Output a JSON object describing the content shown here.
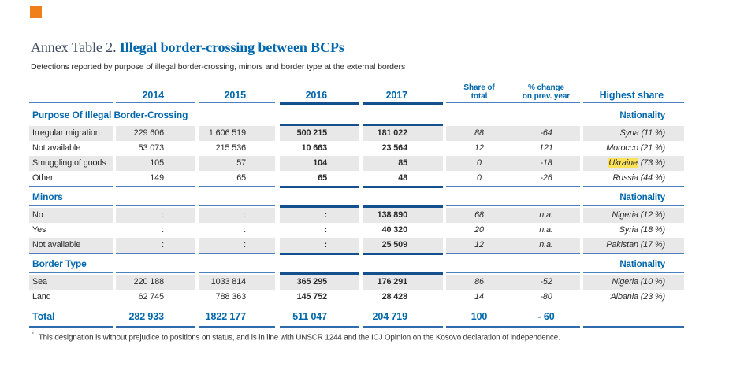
{
  "page": {
    "title_prefix": "Annex Table 2.",
    "title_main": "Illegal border-crossing between BCPs",
    "subtitle": "Detections reported by purpose of illegal border-crossing, minors and border type at the external borders",
    "footnote_marker": "°",
    "footnote_text": "This designation is without prejudice to positions on status, and is in line with UNSCR 1244 and the ICJ Opinion on the Kosovo declaration of independence."
  },
  "colors": {
    "accent_blue": "#0067ac",
    "rule_blue": "#4a80c0",
    "boxed_rule_dark_blue": "#15508e",
    "row_gray": "#e8e8e9",
    "highlight_yellow": "#fce258",
    "orange_marker": "#f07f1a",
    "title_prefix_color": "#3d4c61"
  },
  "table": {
    "col_headers": {
      "y2014": "2014",
      "y2015": "2015",
      "y2016": "2016",
      "y2017": "2017",
      "share_l1": "Share of",
      "share_l2": "total",
      "change_l1": "% change",
      "change_l2": "on prev. year",
      "highest": "Highest share"
    },
    "nationality_label": "Nationality",
    "sections": [
      {
        "title": "Purpose Of Illegal Border-Crossing",
        "rows": [
          {
            "label": "Irregular migration",
            "y2014": "229 606",
            "y2015": "1 606 519",
            "y2016": "500 215",
            "y2017": "181 022",
            "share": "88",
            "change": "-64",
            "high_nat": "Syria",
            "high_pct": " (11 %)",
            "highlight": false
          },
          {
            "label": "Not available",
            "y2014": "53 073",
            "y2015": "215 536",
            "y2016": "10 663",
            "y2017": "23 564",
            "share": "12",
            "change": "121",
            "high_nat": "Morocco",
            "high_pct": " (21 %)",
            "highlight": false
          },
          {
            "label": "Smuggling of goods",
            "y2014": "105",
            "y2015": "57",
            "y2016": "104",
            "y2017": "85",
            "share": "0",
            "change": "-18",
            "high_nat": "Ukraine",
            "high_pct": " (73 %)",
            "highlight": true
          },
          {
            "label": "Other",
            "y2014": "149",
            "y2015": "65",
            "y2016": "65",
            "y2017": "48",
            "share": "0",
            "change": "-26",
            "high_nat": "Russia",
            "high_pct": " (44 %)",
            "highlight": false
          }
        ]
      },
      {
        "title": "Minors",
        "rows": [
          {
            "label": "No",
            "y2014": ":",
            "y2015": ":",
            "y2016": ":",
            "y2017": "138 890",
            "share": "68",
            "change": "n.a.",
            "high_nat": "Nigeria",
            "high_pct": " (12 %)",
            "highlight": false
          },
          {
            "label": "Yes",
            "y2014": ":",
            "y2015": ":",
            "y2016": ":",
            "y2017": "40 320",
            "share": "20",
            "change": "n.a.",
            "high_nat": "Syria",
            "high_pct": " (18 %)",
            "highlight": false
          },
          {
            "label": "Not available",
            "y2014": ":",
            "y2015": ":",
            "y2016": ":",
            "y2017": "25 509",
            "share": "12",
            "change": "n.a.",
            "high_nat": "Pakistan",
            "high_pct": " (17 %)",
            "highlight": false
          }
        ]
      },
      {
        "title": "Border Type",
        "rows": [
          {
            "label": "Sea",
            "y2014": "220 188",
            "y2015": "1033 814",
            "y2016": "365 295",
            "y2017": "176 291",
            "share": "86",
            "change": "-52",
            "high_nat": "Nigeria",
            "high_pct": " (10 %)",
            "highlight": false
          },
          {
            "label": "Land",
            "y2014": "62 745",
            "y2015": "788 363",
            "y2016": "145 752",
            "y2017": "28 428",
            "share": "14",
            "change": "-80",
            "high_nat": "Albania",
            "high_pct": " (23 %)",
            "highlight": false
          }
        ]
      }
    ],
    "total_row": {
      "label": "Total",
      "y2014": "282 933",
      "y2015": "1822 177",
      "y2016": "511 047",
      "y2017": "204 719",
      "share": "100",
      "change": "- 60",
      "high": ""
    }
  }
}
